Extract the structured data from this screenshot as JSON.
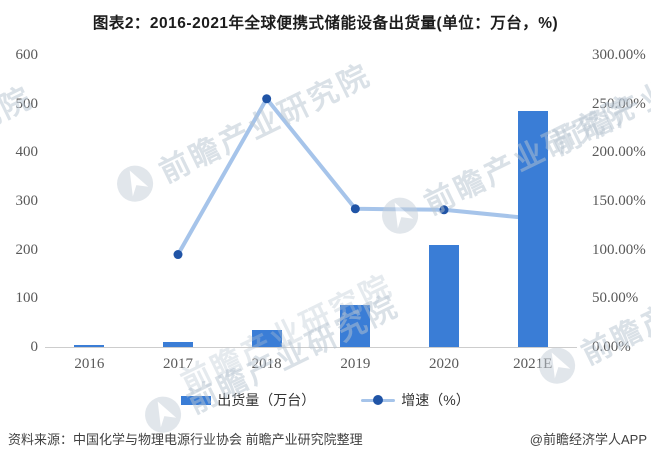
{
  "title": "图表2：2016-2021年全球便携式储能设备出货量(单位：万台，%)",
  "chart_data": {
    "type": "bar",
    "note": "combo chart: bars on left axis, line on right axis",
    "title": "图表2：2016-2021年全球便携式储能设备出货量(单位：万台，%)",
    "categories": [
      "2016",
      "2017",
      "2018",
      "2019",
      "2020",
      "2021E"
    ],
    "series": [
      {
        "name": "出货量（万台）",
        "kind": "bar",
        "axis": "left",
        "values": [
          5,
          10,
          35,
          86,
          209,
          484
        ]
      },
      {
        "name": "增速（%）",
        "kind": "line",
        "axis": "right",
        "values": [
          null,
          95,
          255,
          142,
          141,
          132
        ]
      }
    ],
    "left_axis": {
      "min": 0,
      "max": 600,
      "tick_labels": [
        "600",
        "500",
        "400",
        "300",
        "200",
        "100",
        "0"
      ]
    },
    "right_axis": {
      "min": 0,
      "max": 300,
      "tick_labels": [
        "300.00%",
        "250.00%",
        "200.00%",
        "150.00%",
        "100.00%",
        "50.00%",
        "0.00%"
      ]
    },
    "grid": false,
    "legend_position": "bottom"
  },
  "legend": {
    "bar_label": "出货量（万台）",
    "line_label": "增速（%）"
  },
  "footer": {
    "source": "资料来源：中国化学与物理电源行业协会 前瞻产业研究院整理",
    "credit": "@前瞻经济学人APP"
  },
  "watermark": {
    "text": "前瞻产业研究院"
  },
  "colors": {
    "bar": "#3a7dd6",
    "line": "#a6c4ea",
    "dot": "#2054a6",
    "axis_line": "#cdcdcd",
    "tick_text": "#595959",
    "watermark": "#b7c4d1"
  }
}
